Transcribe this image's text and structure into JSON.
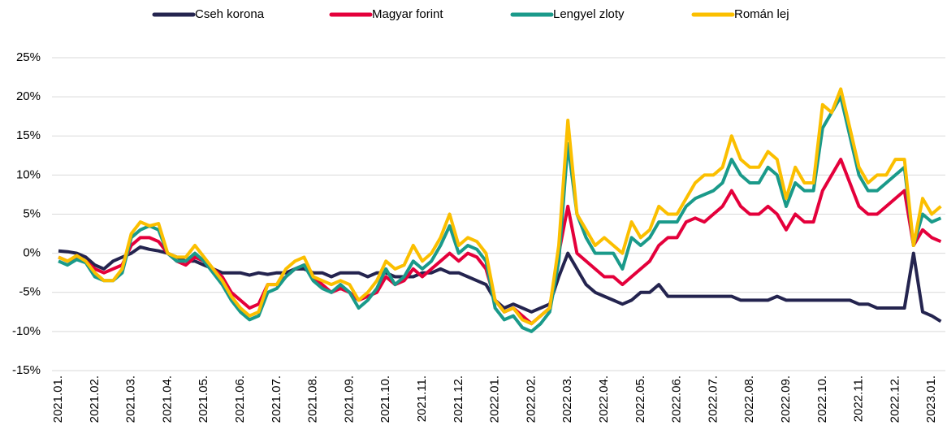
{
  "chart_data": {
    "type": "line",
    "categories": [
      "2021.01.",
      null,
      null,
      null,
      "2021.02.",
      null,
      null,
      null,
      "2021.03.",
      null,
      null,
      null,
      "2021.04.",
      null,
      null,
      null,
      "2021.05.",
      null,
      null,
      null,
      "2021.06.",
      null,
      null,
      null,
      "2021.07.",
      null,
      null,
      null,
      "2021.08.",
      null,
      null,
      null,
      "2021.09.",
      null,
      null,
      null,
      "2021.10.",
      null,
      null,
      null,
      "2021.11.",
      null,
      null,
      null,
      "2021.12.",
      null,
      null,
      null,
      "2022.01.",
      null,
      null,
      null,
      "2022.02.",
      null,
      null,
      null,
      "2022.03.",
      null,
      null,
      null,
      "2022.04.",
      null,
      null,
      null,
      "2022.05.",
      null,
      null,
      null,
      "2022.06.",
      null,
      null,
      null,
      "2022.07.",
      null,
      null,
      null,
      "2022.08.",
      null,
      null,
      null,
      "2022.09.",
      null,
      null,
      null,
      "2022.10.",
      null,
      null,
      null,
      "2022.11.",
      null,
      null,
      null,
      "2022.12.",
      null,
      null,
      null,
      "2023.01.",
      null
    ],
    "series": [
      {
        "name": "Cseh korona",
        "color": "#24244f",
        "values": [
          0.3,
          0.2,
          0,
          -0.5,
          -1.5,
          -2,
          -1,
          -0.5,
          0,
          0.8,
          0.5,
          0.3,
          0,
          -0.5,
          -1,
          -1,
          -1.5,
          -2,
          -2.5,
          -2.5,
          -2.5,
          -2.8,
          -2.5,
          -2.7,
          -2.5,
          -2.5,
          -2,
          -2,
          -2.5,
          -2.5,
          -3,
          -2.5,
          -2.5,
          -2.5,
          -3,
          -2.5,
          -2.5,
          -3,
          -3,
          -3,
          -2.5,
          -2.5,
          -2,
          -2.5,
          -2.5,
          -3,
          -3.5,
          -4,
          -6,
          -7,
          -6.5,
          -7,
          -7.5,
          -7,
          -6.5,
          -3,
          0,
          -2,
          -4,
          -5,
          -5.5,
          -6,
          -6.5,
          -6,
          -5,
          -5,
          -4,
          -5.5,
          -5.5,
          -5.5,
          -5.5,
          -5.5,
          -5.5,
          -5.5,
          -5.5,
          -6,
          -6,
          -6,
          -6,
          -5.5,
          -6,
          -6,
          -6,
          -6,
          -6,
          -6,
          -6,
          -6,
          -6.5,
          -6.5,
          -7,
          -7,
          -7,
          -7,
          0,
          -7.5,
          -8,
          -8.7
        ]
      },
      {
        "name": "Magyar forint",
        "color": "#e4003b",
        "values": [
          -0.5,
          -1,
          -0.5,
          -1,
          -2,
          -2.5,
          -2,
          -1.5,
          1,
          2,
          2,
          1.5,
          0,
          -1,
          -1.5,
          -0.5,
          -1,
          -2,
          -3,
          -5,
          -6,
          -7,
          -6.5,
          -4,
          -4,
          -3,
          -2,
          -1.5,
          -3,
          -4,
          -5,
          -4.5,
          -5,
          -6,
          -5.5,
          -5,
          -3,
          -4,
          -3.5,
          -2,
          -3,
          -2,
          -1,
          0,
          -1,
          0,
          -0.5,
          -2,
          -6,
          -7.5,
          -7,
          -8,
          -9,
          -8,
          -7,
          0,
          6,
          0,
          -1,
          -2,
          -3,
          -3,
          -4,
          -3,
          -2,
          -1,
          1,
          2,
          2,
          4,
          4.5,
          4,
          5,
          6,
          8,
          6,
          5,
          5,
          6,
          5,
          3,
          5,
          4,
          4,
          8,
          10,
          12,
          9,
          6,
          5,
          5,
          6,
          7,
          8,
          1,
          3,
          2,
          1.5
        ]
      },
      {
        "name": "Lengyel zloty",
        "color": "#1a9a8a",
        "values": [
          -1,
          -1.5,
          -0.8,
          -1.2,
          -3,
          -3.5,
          -3.5,
          -2.5,
          2,
          3,
          3.5,
          3,
          0,
          -1,
          -1,
          0,
          -1,
          -2.5,
          -4,
          -6,
          -7.5,
          -8.5,
          -8,
          -5,
          -4.5,
          -3,
          -2,
          -1.5,
          -3.5,
          -4.5,
          -5,
          -4,
          -5,
          -7,
          -6,
          -4.5,
          -2,
          -4,
          -3,
          -1,
          -2,
          -1,
          1,
          3.5,
          0,
          1,
          0.5,
          -1,
          -7,
          -8.5,
          -8,
          -9.5,
          -10,
          -9,
          -7.5,
          -1,
          14,
          5,
          2,
          0,
          0,
          0,
          -2,
          2,
          1,
          2,
          4,
          4,
          4,
          6,
          7,
          7.5,
          8,
          9,
          12,
          10,
          9,
          9,
          11,
          10,
          6,
          9,
          8,
          8,
          16,
          18,
          20,
          15,
          10,
          8,
          8,
          9,
          10,
          11,
          1,
          5,
          4,
          4.5
        ]
      },
      {
        "name": "Román lej",
        "color": "#fbbf00",
        "values": [
          -0.5,
          -1,
          -0.3,
          -1,
          -2.5,
          -3.5,
          -3.5,
          -2,
          2.5,
          4,
          3.5,
          3.8,
          0,
          -0.5,
          -0.5,
          1,
          -0.5,
          -2,
          -3.5,
          -5.5,
          -7,
          -8,
          -7.5,
          -4,
          -4,
          -2,
          -1,
          -0.5,
          -3,
          -3.5,
          -4,
          -3.5,
          -4,
          -6,
          -5,
          -3.5,
          -1,
          -2,
          -1.5,
          1,
          -1,
          0,
          2,
          5,
          1,
          2,
          1.5,
          0,
          -6,
          -7.5,
          -7,
          -8.5,
          -9,
          -8,
          -7,
          1,
          17,
          5,
          3,
          1,
          2,
          1,
          0,
          4,
          2,
          3,
          6,
          5,
          5,
          7,
          9,
          10,
          10,
          11,
          15,
          12,
          11,
          11,
          13,
          12,
          7,
          11,
          9,
          9,
          19,
          18,
          21,
          16,
          11,
          9,
          10,
          10,
          12,
          12,
          1,
          7,
          5,
          6
        ]
      }
    ],
    "ylim": [
      -15,
      25
    ],
    "yticks": [
      {
        "value": -15,
        "label": "-15%"
      },
      {
        "value": -10,
        "label": "-10%"
      },
      {
        "value": -5,
        "label": "-5%"
      },
      {
        "value": 0,
        "label": "0%"
      },
      {
        "value": 5,
        "label": "5%"
      },
      {
        "value": 10,
        "label": "10%"
      },
      {
        "value": 15,
        "label": "15%"
      },
      {
        "value": 20,
        "label": "20%"
      },
      {
        "value": 25,
        "label": "25%"
      }
    ],
    "grid": true,
    "legend": "top"
  }
}
